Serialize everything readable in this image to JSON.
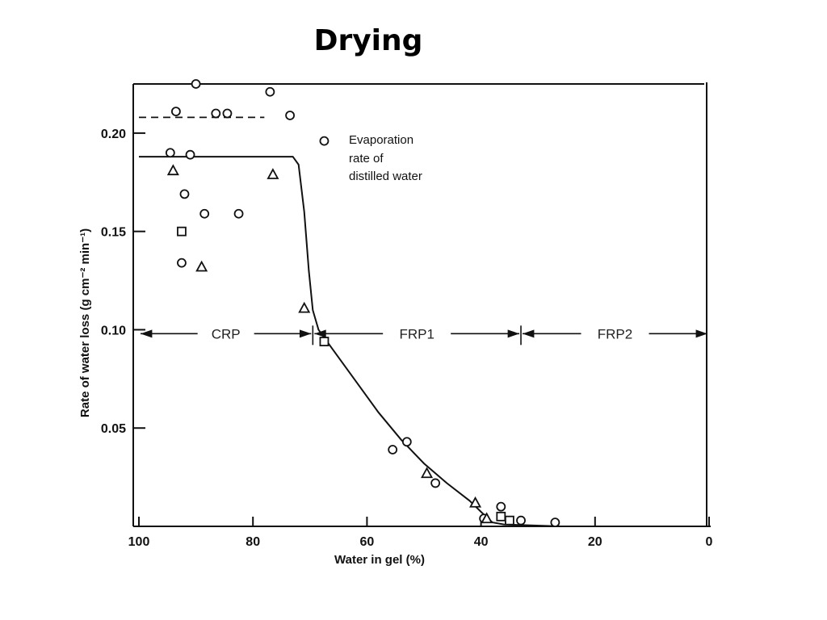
{
  "slide_title": "Drying",
  "chart_data": {
    "type": "scatter",
    "xlabel": "Water in gel (%)",
    "ylabel": "Rate of water loss (g cm⁻² min⁻¹)",
    "xlim": [
      100,
      0
    ],
    "ylim": [
      0,
      0.225
    ],
    "x_reversed": true,
    "x_ticks": [
      100,
      80,
      60,
      40,
      20,
      0
    ],
    "y_ticks": [
      0.05,
      0.1,
      0.15,
      0.2
    ],
    "x_tick_labels": [
      "100",
      "80",
      "60",
      "40",
      "20",
      "0"
    ],
    "y_tick_labels": [
      "0.05",
      "0.10",
      "0.15",
      "0.20"
    ],
    "grid": false,
    "series": [
      {
        "marker": "circle",
        "points": [
          [
            90,
            0.225
          ],
          [
            77,
            0.221
          ],
          [
            93.5,
            0.211
          ],
          [
            86.5,
            0.21
          ],
          [
            84.5,
            0.21
          ],
          [
            73.5,
            0.209
          ],
          [
            67.5,
            0.196
          ],
          [
            94.5,
            0.19
          ],
          [
            91,
            0.189
          ],
          [
            92,
            0.169
          ],
          [
            88.5,
            0.159
          ],
          [
            82.5,
            0.159
          ],
          [
            92.5,
            0.134
          ],
          [
            53,
            0.043
          ],
          [
            55.5,
            0.039
          ],
          [
            48,
            0.022
          ],
          [
            36.5,
            0.01
          ],
          [
            39.5,
            0.004
          ],
          [
            33,
            0.003
          ],
          [
            27,
            0.002
          ]
        ]
      },
      {
        "marker": "triangle",
        "points": [
          [
            94,
            0.181
          ],
          [
            76.5,
            0.179
          ],
          [
            89,
            0.132
          ],
          [
            71,
            0.111
          ],
          [
            49.5,
            0.027
          ],
          [
            41,
            0.012
          ],
          [
            39,
            0.004
          ]
        ]
      },
      {
        "marker": "square",
        "points": [
          [
            92.5,
            0.15
          ],
          [
            67.5,
            0.094
          ],
          [
            36.5,
            0.005
          ],
          [
            35,
            0.003
          ]
        ]
      }
    ],
    "fit_curve": [
      [
        100,
        0.188
      ],
      [
        73,
        0.188
      ],
      [
        72,
        0.184
      ],
      [
        71,
        0.16
      ],
      [
        70.2,
        0.13
      ],
      [
        69.5,
        0.11
      ],
      [
        68.5,
        0.1
      ],
      [
        66,
        0.09
      ],
      [
        62,
        0.074
      ],
      [
        58,
        0.058
      ],
      [
        54,
        0.044
      ],
      [
        50,
        0.032
      ],
      [
        46,
        0.022
      ],
      [
        42,
        0.013
      ],
      [
        39.5,
        0.006
      ],
      [
        38,
        0.002
      ],
      [
        36,
        0.001
      ],
      [
        26,
        0.0
      ]
    ],
    "reference_line": {
      "y": 0.208,
      "x_from": 100,
      "x_to": 78,
      "style": "dashed"
    },
    "annotation": [
      "Evaporation",
      "rate of",
      "distilled water"
    ],
    "regions": [
      {
        "label": "CRP",
        "x_from": 100,
        "x_to": 69.5
      },
      {
        "label": "FRP1",
        "x_from": 69.5,
        "x_to": 33
      },
      {
        "label": "FRP2",
        "x_from": 33,
        "x_to": 0
      }
    ],
    "region_y": 0.098
  }
}
